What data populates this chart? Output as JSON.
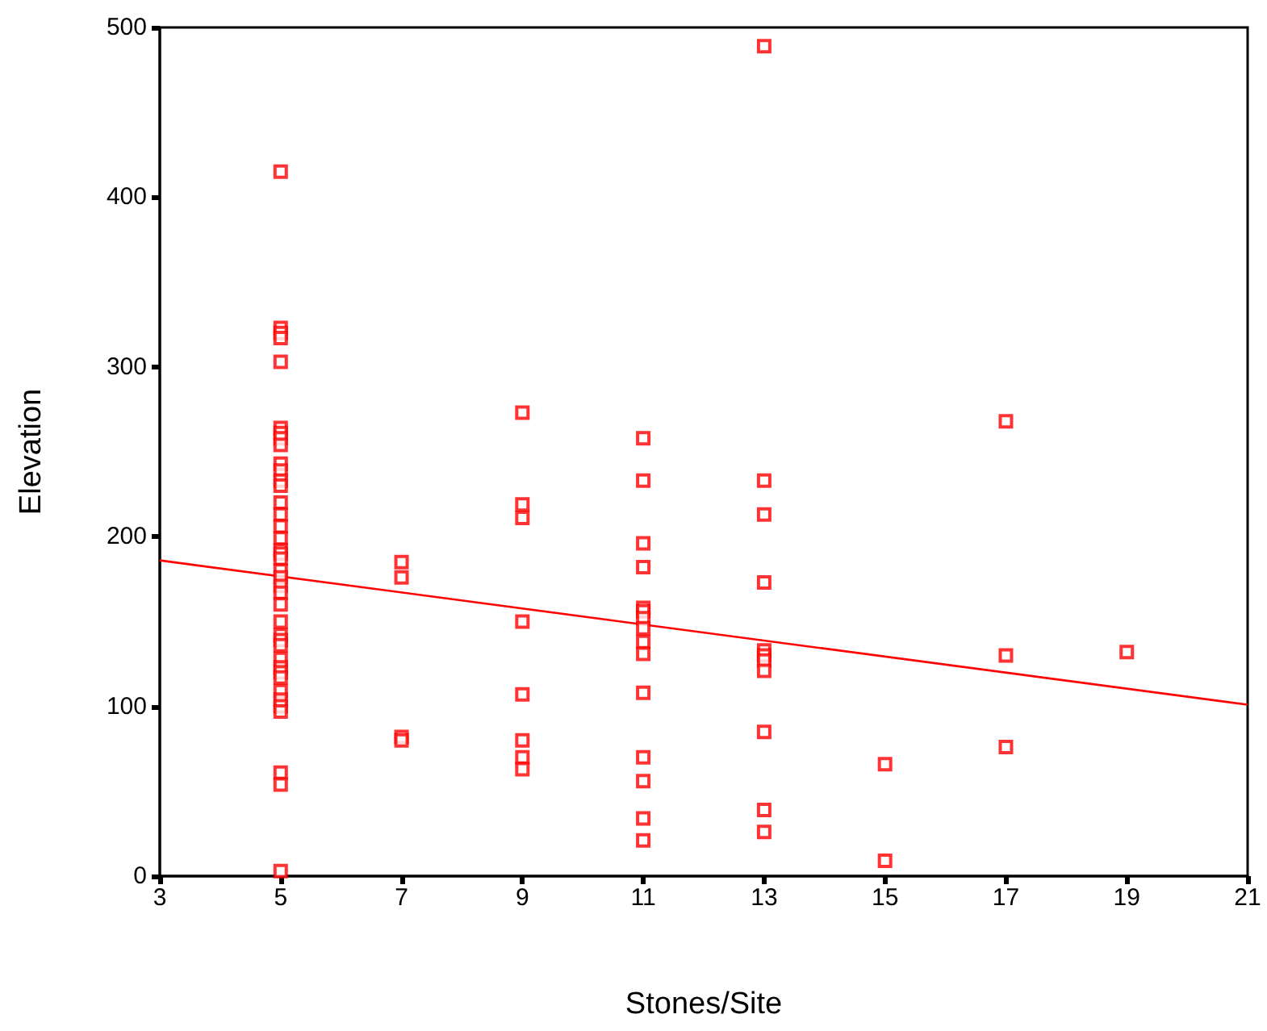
{
  "chart_data": {
    "type": "scatter",
    "xlabel": "Stones/Site",
    "ylabel": "Elevation",
    "xlim": [
      3,
      21
    ],
    "xticks": [
      3,
      5,
      7,
      9,
      11,
      13,
      15,
      17,
      19,
      21
    ],
    "ylim": [
      0,
      500
    ],
    "yticks": [
      0,
      100,
      200,
      300,
      400,
      500
    ],
    "grid": false,
    "marker": "square",
    "series": [
      {
        "color": "#ff0000",
        "x": [
          5,
          5,
          5,
          5,
          5,
          5,
          5,
          5,
          5,
          5,
          5,
          5,
          5,
          5,
          5,
          5,
          5,
          5,
          5,
          5,
          5,
          5,
          5,
          5,
          5,
          5,
          5,
          5,
          5,
          5,
          5,
          5,
          5,
          5,
          5,
          5,
          5,
          5,
          5,
          5,
          7,
          7,
          7,
          7,
          9,
          9,
          9,
          9,
          9,
          9,
          9,
          9,
          11,
          11,
          11,
          11,
          11,
          11,
          11,
          11,
          11,
          11,
          11,
          11,
          11,
          11,
          11,
          13,
          13,
          13,
          13,
          13,
          13,
          13,
          13,
          13,
          13,
          13,
          15,
          15,
          17,
          17,
          17,
          19
        ],
        "values": [
          415,
          323,
          320,
          317,
          303,
          264,
          261,
          258,
          254,
          243,
          239,
          233,
          230,
          220,
          213,
          206,
          199,
          192,
          190,
          187,
          180,
          176,
          171,
          167,
          160,
          150,
          142,
          139,
          136,
          128,
          123,
          120,
          117,
          109,
          104,
          100,
          97,
          61,
          54,
          3,
          185,
          176,
          82,
          80,
          273,
          219,
          211,
          150,
          107,
          80,
          70,
          63,
          258,
          233,
          196,
          182,
          158,
          156,
          152,
          146,
          138,
          131,
          108,
          70,
          56,
          34,
          21,
          489,
          233,
          213,
          173,
          133,
          130,
          127,
          121,
          85,
          39,
          26,
          66,
          9,
          268,
          130,
          76,
          132
        ]
      },
      {
        "type": "line",
        "color": "#ff0000",
        "marker": "none",
        "x": [
          3,
          21
        ],
        "values": [
          186,
          101
        ]
      }
    ]
  }
}
